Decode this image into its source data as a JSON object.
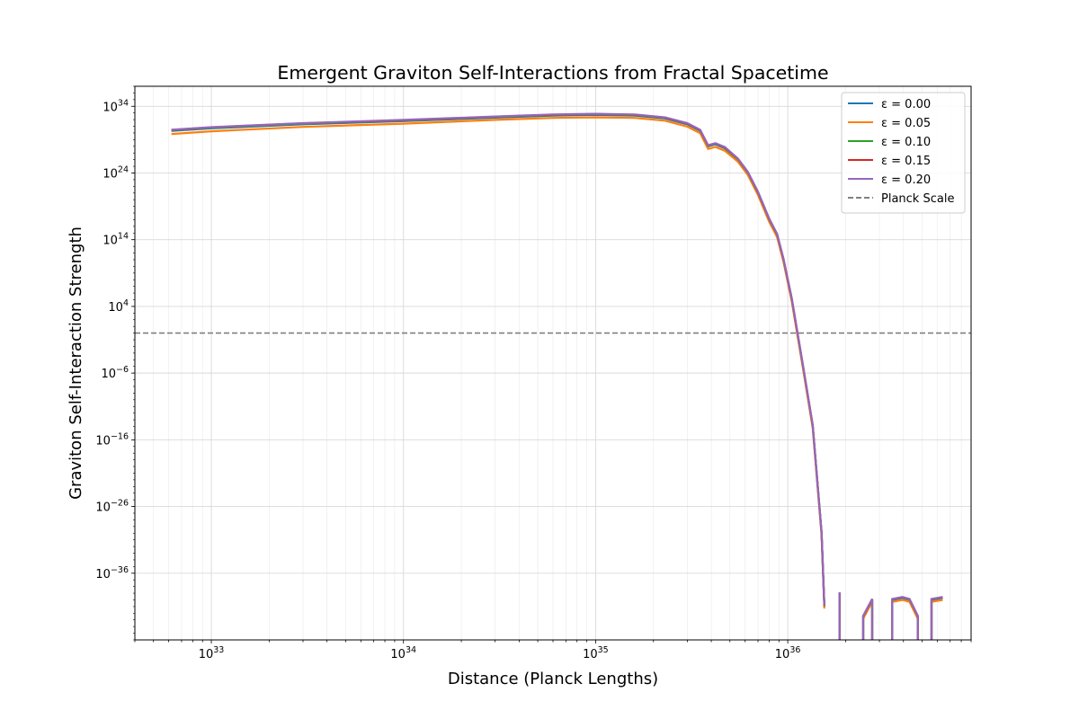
{
  "chart_data": {
    "type": "line",
    "title": "Emergent Graviton Self-Interactions from Fractal Spacetime",
    "xlabel": "Distance (Planck Lengths)",
    "ylabel": "Graviton Self-Interaction Strength",
    "xscale": "log",
    "yscale": "log",
    "xlim": [
      4e+32,
      9e+36
    ],
    "ylim": [
      1e-46,
      1e+37
    ],
    "x_ticks": [
      {
        "base": "10",
        "exp": "33",
        "value": 1e+33
      },
      {
        "base": "10",
        "exp": "34",
        "value": 1e+34
      },
      {
        "base": "10",
        "exp": "35",
        "value": 1e+35
      },
      {
        "base": "10",
        "exp": "36",
        "value": 1e+36
      }
    ],
    "y_ticks": [
      {
        "base": "10",
        "exp": "34",
        "value": 1e+34
      },
      {
        "base": "10",
        "exp": "24",
        "value": 1e+24
      },
      {
        "base": "10",
        "exp": "14",
        "value": 100000000000000.0
      },
      {
        "base": "10",
        "exp": "4",
        "value": 10000.0
      },
      {
        "base": "10",
        "exp": "−6",
        "value": 1e-06
      },
      {
        "base": "10",
        "exp": "−16",
        "value": 1e-16
      },
      {
        "base": "10",
        "exp": "−26",
        "value": 1e-26
      },
      {
        "base": "10",
        "exp": "−36",
        "value": 1e-36
      }
    ],
    "grid": true,
    "legend_position": "top-right",
    "reference_line": {
      "name": "Planck Scale",
      "y": 1.0,
      "color": "#808080",
      "style": "dashed"
    },
    "series": [
      {
        "name": "ε = 0.00",
        "color": "#1f77b4",
        "x": [
          6.2e+32,
          1e+33,
          3e+33,
          1e+34,
          3e+34,
          6e+34,
          1e+35,
          1.6e+35,
          2.3e+35,
          3e+35,
          3.5e+35,
          3.85e+35,
          4.2e+35,
          4.7e+35,
          5.5e+35,
          6.2e+35,
          7e+35,
          8e+35,
          8.8e+35,
          9.5e+35,
          1.05e+36,
          1.2e+36,
          1.35e+36,
          1.5e+36,
          1.55e+36
        ],
        "y": [
          2e+30,
          5e+30,
          2e+31,
          6e+31,
          2e+32,
          4e+32,
          5e+32,
          4e+32,
          1.5e+32,
          2e+31,
          2e+30,
          1e+28,
          2e+28,
          5e+27,
          1e+26,
          1e+24,
          1e+21,
          1e+17,
          500000000000000.0,
          100000000000.0,
          100000.0,
          1e-05,
          1e-14,
          1e-30,
          1e-41
        ]
      },
      {
        "name": "ε = 0.05",
        "color": "#ff7f0e",
        "x": [
          6.2e+32,
          1e+33,
          3e+33,
          1e+34,
          3e+34,
          6e+34,
          1e+35,
          1.6e+35,
          2.3e+35,
          3e+35,
          3.5e+35,
          3.85e+35,
          4.2e+35,
          4.7e+35,
          5.5e+35,
          6.2e+35,
          7e+35,
          8e+35,
          8.8e+35,
          9.5e+35,
          1.05e+36,
          1.2e+36,
          1.35e+36,
          1.5e+36,
          1.55e+36
        ],
        "y": [
          7e+29,
          1.8e+30,
          8e+30,
          2.5e+31,
          9e+31,
          1.8e+32,
          2.2e+32,
          1.8e+32,
          7e+31,
          9e+30,
          9e+29,
          4e+27,
          8e+27,
          2.2e+27,
          5e+25,
          5e+23,
          5e+20,
          5e+16,
          250000000000000.0,
          50000000000.0,
          50000.0,
          5e-06,
          5e-15,
          5e-31,
          5e-42
        ]
      },
      {
        "name": "ε = 0.10",
        "color": "#2ca02c",
        "x": [
          6.2e+32,
          1e+33,
          3e+33,
          1e+34,
          3e+34,
          6e+34,
          1e+35,
          1.6e+35,
          2.3e+35,
          3e+35,
          3.5e+35,
          3.85e+35,
          4.2e+35,
          4.7e+35,
          5.5e+35,
          6.2e+35,
          7e+35,
          8e+35,
          8.8e+35,
          9.5e+35,
          1.05e+36,
          1.2e+36,
          1.35e+36,
          1.5e+36,
          1.55e+36
        ],
        "y": [
          2.5e+30,
          6e+30,
          2.5e+31,
          7e+31,
          2.4e+32,
          4.8e+32,
          6e+32,
          4.8e+32,
          1.8e+32,
          2.4e+31,
          2.4e+30,
          1.2e+28,
          2.4e+28,
          6e+27,
          1.2e+26,
          1.2e+24,
          1.2e+21,
          1.2e+17,
          600000000000000.0,
          120000000000.0,
          120000.0,
          1.2e-05,
          1.2e-14,
          1.2e-30,
          1.2e-41
        ]
      },
      {
        "name": "ε = 0.15",
        "color": "#d62728",
        "x": [
          6.2e+32,
          1e+33,
          3e+33,
          1e+34,
          3e+34,
          6e+34,
          1e+35,
          1.6e+35,
          2.3e+35,
          3e+35,
          3.5e+35,
          3.85e+35,
          4.2e+35,
          4.7e+35,
          5.5e+35,
          6.2e+35,
          7e+35,
          8e+35,
          8.8e+35,
          9.5e+35,
          1.05e+36,
          1.2e+36,
          1.35e+36,
          1.5e+36,
          1.55e+36
        ],
        "y": [
          2.8e+30,
          7e+30,
          2.8e+31,
          8e+31,
          2.7e+32,
          5.4e+32,
          6.8e+32,
          5.4e+32,
          2e+32,
          2.7e+31,
          2.7e+30,
          1.4e+28,
          2.7e+28,
          7e+27,
          1.4e+26,
          1.4e+24,
          1.4e+21,
          1.4e+17,
          700000000000000.0,
          140000000000.0,
          140000.0,
          1.4e-05,
          1.4e-14,
          1.4e-30,
          1.4e-41
        ]
      },
      {
        "name": "ε = 0.20",
        "color": "#9467bd",
        "x": [
          6.2e+32,
          1e+33,
          3e+33,
          1e+34,
          3e+34,
          6e+34,
          1e+35,
          1.6e+35,
          2.3e+35,
          3e+35,
          3.5e+35,
          3.85e+35,
          4.2e+35,
          4.7e+35,
          5.5e+35,
          6.2e+35,
          7e+35,
          8e+35,
          8.8e+35,
          9.5e+35,
          1.05e+36,
          1.2e+36,
          1.35e+36,
          1.5e+36,
          1.55e+36
        ],
        "y": [
          3e+30,
          7.5e+30,
          3e+31,
          9e+31,
          3e+32,
          6e+32,
          7.5e+32,
          6e+32,
          2.2e+32,
          3e+31,
          3e+30,
          1.5e+28,
          3e+28,
          8e+27,
          1.5e+26,
          1.5e+24,
          1.5e+21,
          1.5e+17,
          750000000000000.0,
          150000000000.0,
          150000.0,
          1.5e-05,
          1.5e-14,
          1.5e-30,
          1.5e-41
        ]
      }
    ],
    "tail_segments": [
      {
        "x": [
          1.86e+36,
          1.86e+36
        ],
        "y": [
          1e-46,
          1e-39
        ]
      },
      {
        "x": [
          2.47e+36,
          2.47e+36,
          2.75e+36,
          2.75e+36
        ],
        "y": [
          1e-46,
          3e-43,
          1e-40,
          1e-46
        ]
      },
      {
        "x": [
          3.5e+36,
          3.5e+36,
          3.95e+36,
          4.3e+36,
          4.75e+36,
          4.75e+36
        ],
        "y": [
          1e-46,
          1e-40,
          2e-40,
          1e-40,
          3e-43,
          1e-46
        ]
      },
      {
        "x": [
          5.6e+36,
          5.6e+36,
          6.4e+36
        ],
        "y": [
          1e-46,
          1e-40,
          2e-40
        ]
      }
    ]
  }
}
